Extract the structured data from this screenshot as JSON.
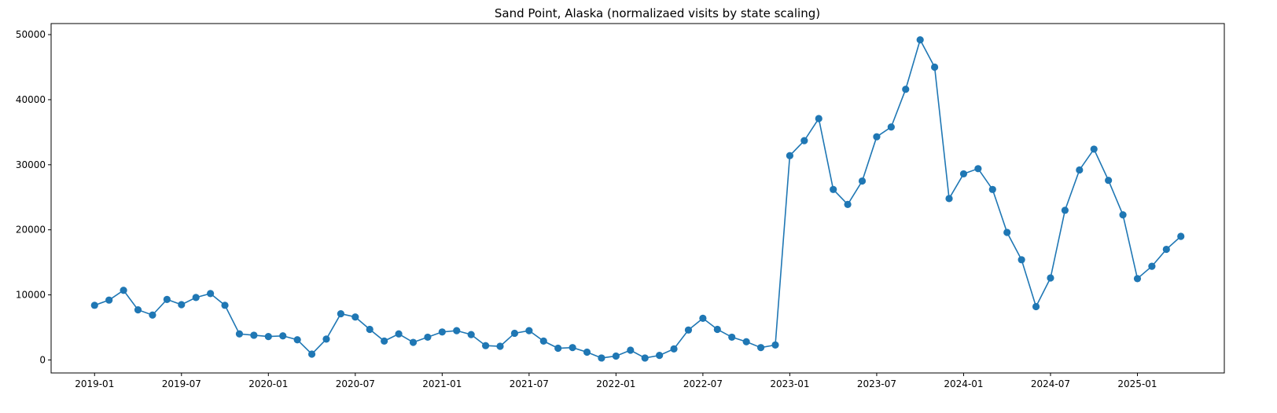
{
  "chart_data": {
    "type": "line",
    "title": "Sand Point, Alaska (normalizaed visits by state scaling)",
    "xlabel": "",
    "ylabel": "",
    "x_ticks": [
      "2019-01",
      "2019-07",
      "2020-01",
      "2020-07",
      "2021-01",
      "2021-07",
      "2022-01",
      "2022-07",
      "2023-01",
      "2023-07",
      "2024-01",
      "2024-07",
      "2025-01"
    ],
    "y_ticks": [
      0,
      10000,
      20000,
      30000,
      40000,
      50000
    ],
    "xlim": [
      "2018-10",
      "2025-07"
    ],
    "ylim": [
      -2000,
      51700
    ],
    "grid": false,
    "marker": "circle",
    "colors": {
      "series": "#1f77b4",
      "axes": "#000000",
      "background": "#ffffff"
    },
    "series": [
      {
        "x": [
          "2019-01",
          "2019-02",
          "2019-03",
          "2019-04",
          "2019-05",
          "2019-06",
          "2019-07",
          "2019-08",
          "2019-09",
          "2019-10",
          "2019-11",
          "2019-12",
          "2020-01",
          "2020-02",
          "2020-03",
          "2020-04",
          "2020-05",
          "2020-06",
          "2020-07",
          "2020-08",
          "2020-09",
          "2020-10",
          "2020-11",
          "2020-12",
          "2021-01",
          "2021-02",
          "2021-03",
          "2021-04",
          "2021-05",
          "2021-06",
          "2021-07",
          "2021-08",
          "2021-09",
          "2021-10",
          "2021-11",
          "2021-12",
          "2022-01",
          "2022-02",
          "2022-03",
          "2022-04",
          "2022-05",
          "2022-06",
          "2022-07",
          "2022-08",
          "2022-09",
          "2022-10",
          "2022-11",
          "2022-12",
          "2023-01",
          "2023-02",
          "2023-03",
          "2023-04",
          "2023-05",
          "2023-06",
          "2023-07",
          "2023-08",
          "2023-09",
          "2023-10",
          "2023-11",
          "2023-12",
          "2024-01",
          "2024-02",
          "2024-03",
          "2024-04",
          "2024-05",
          "2024-06",
          "2024-07",
          "2024-08",
          "2024-09",
          "2024-10",
          "2024-11",
          "2024-12",
          "2025-01",
          "2025-02",
          "2025-03",
          "2025-04"
        ],
        "values": [
          8400,
          9200,
          10700,
          7700,
          6900,
          9300,
          8500,
          9600,
          10200,
          8400,
          4000,
          3800,
          3600,
          3700,
          3100,
          900,
          3200,
          7100,
          6600,
          4700,
          2900,
          4000,
          2700,
          3500,
          4300,
          4500,
          3900,
          2200,
          2100,
          4100,
          4500,
          2900,
          1800,
          1900,
          1200,
          300,
          600,
          1500,
          300,
          700,
          1700,
          4600,
          6400,
          4700,
          3500,
          2800,
          1900,
          2300,
          31400,
          33700,
          37100,
          26200,
          23900,
          27500,
          34300,
          35800,
          41600,
          49200,
          45000,
          24800,
          28600,
          29400,
          26200,
          19600,
          15400,
          8200,
          12600,
          23000,
          29200,
          32400,
          27600,
          22300,
          12500,
          14400,
          17000,
          19000
        ]
      }
    ]
  }
}
